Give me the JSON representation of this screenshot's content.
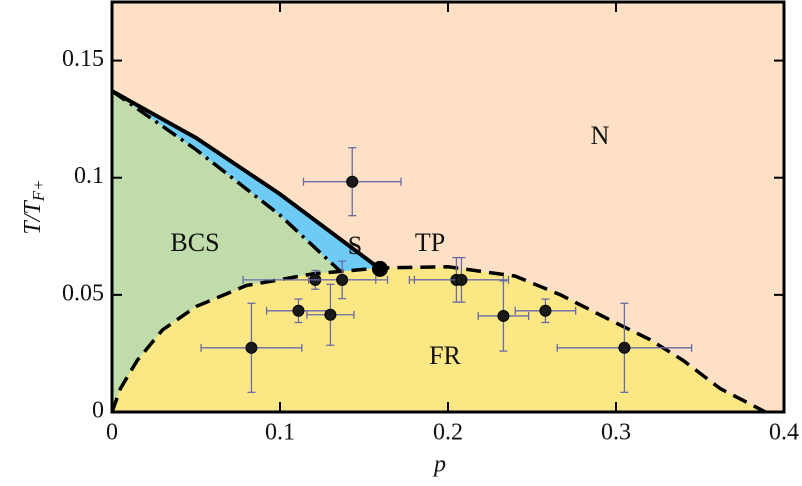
{
  "chart_data": {
    "type": "scatter",
    "xlabel": "p",
    "ylabel": {
      "main": "T/T",
      "sub": "F+"
    },
    "xlim": [
      0,
      0.4
    ],
    "ylim": [
      0,
      0.175
    ],
    "xticks": [
      0,
      0.1,
      0.2,
      0.3,
      0.4
    ],
    "yticks": [
      0,
      0.05,
      0.1,
      0.15
    ],
    "x": [
      0.083,
      0.111,
      0.121,
      0.13,
      0.137,
      0.143,
      0.205,
      0.208,
      0.233,
      0.258,
      0.305
    ],
    "values": [
      0.0274,
      0.0432,
      0.0564,
      0.0415,
      0.0564,
      0.0983,
      0.0564,
      0.0564,
      0.041,
      0.0432,
      0.0274
    ],
    "xerr": [
      0.03,
      0.019,
      0.043,
      0.014,
      0.02,
      0.029,
      0.028,
      0.028,
      0.015,
      0.018,
      0.04
    ],
    "yerr": [
      0.019,
      0.005,
      0.004,
      0.013,
      0.008,
      0.0145,
      0.0095,
      0.0095,
      0.015,
      0.005,
      0.019
    ],
    "color": "#1a1a1a",
    "error_color": "#6a6aa8",
    "curves": [
      {
        "style": "solid",
        "x": [
          0,
          0.05,
          0.1,
          0.1595
        ],
        "y": [
          0.137,
          0.117,
          0.093,
          0.0611
        ]
      },
      {
        "style": "dashdot",
        "x": [
          0,
          0.05,
          0.1,
          0.136
        ],
        "y": [
          0.137,
          0.112,
          0.084,
          0.06
        ]
      },
      {
        "style": "dashed",
        "x": [
          0,
          0.005,
          0.015,
          0.03,
          0.05,
          0.08,
          0.12,
          0.16,
          0.2,
          0.24,
          0.267,
          0.3,
          0.32,
          0.34,
          0.362,
          0.389
        ],
        "y": [
          0,
          0.01,
          0.022,
          0.035,
          0.045,
          0.054,
          0.059,
          0.0615,
          0.062,
          0.058,
          0.05,
          0.038,
          0.031,
          0.022,
          0.01,
          0
        ]
      }
    ],
    "region_colors": {
      "N": "#fde0c5",
      "BCS": "#bfdcaa",
      "S": "#6ecbf5",
      "FR": "#fbe884"
    },
    "annotations": [
      "N",
      "BCS",
      "S",
      "TP",
      "FR"
    ]
  }
}
